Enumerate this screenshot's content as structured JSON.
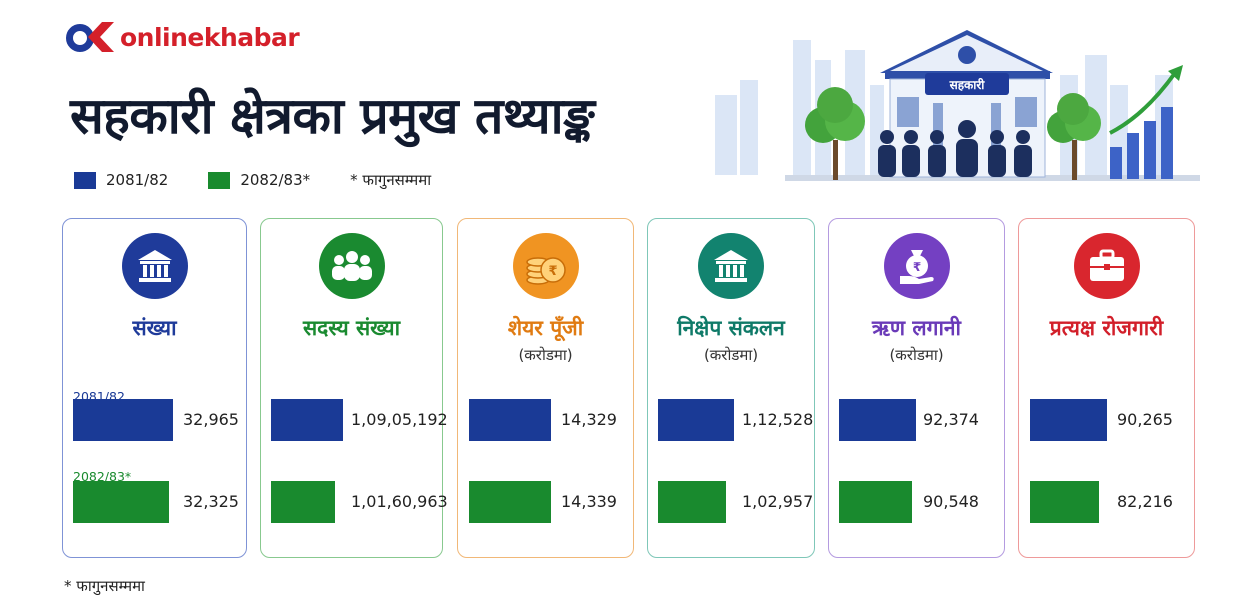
{
  "brand": {
    "name": "onlinekhabar"
  },
  "title": "सहकारी क्षेत्रका प्रमुख तथ्याङ्क",
  "legend": [
    {
      "label": "2081/82",
      "color": "#1a3a96"
    },
    {
      "label": "2082/83*",
      "color": "#198a2e"
    },
    {
      "label": "* फागुनसम्ममा",
      "color": ""
    }
  ],
  "hero": {
    "sign": "सहकारी"
  },
  "colors": {
    "y2081": "#1a3a96",
    "y2082": "#198a2e"
  },
  "chart_data": {
    "type": "bar",
    "series": [
      {
        "name": "2081/82",
        "values": [
          32965,
          10905192,
          14329,
          112528,
          92374,
          90265
        ]
      },
      {
        "name": "2082/83*",
        "values": [
          32325,
          10160963,
          14339,
          102957,
          90548,
          82216
        ]
      }
    ],
    "categories": [
      "संख्या",
      "सदस्य संख्या",
      "शेयर पूँजी",
      "निक्षेप संकलन",
      "ऋण लगानी",
      "प्रत्यक्ष रोजगारी"
    ]
  },
  "cards": [
    {
      "title": "संख्या",
      "subtitle": "",
      "icon": "bank-building-icon",
      "color": "#1f3b9a",
      "border": "#7f93d6",
      "iconbg": "#1f3b9a",
      "bar_labels": [
        "2081/82",
        "2082/83*"
      ],
      "values": [
        "32,965",
        "32,325"
      ]
    },
    {
      "title": "सदस्य संख्या",
      "subtitle": "",
      "icon": "people-group-icon",
      "color": "#1a8a30",
      "border": "#88c98f",
      "iconbg": "#1a8a30",
      "values": [
        "1,09,05,192",
        "1,01,60,963"
      ]
    },
    {
      "title": "शेयर पूँजी",
      "subtitle": "(करोडमा)",
      "icon": "coin-stack-icon",
      "color": "#e07b12",
      "border": "#f1b878",
      "iconbg": "#f09422",
      "values": [
        "14,329",
        "14,339"
      ]
    },
    {
      "title": "निक्षेप संकलन",
      "subtitle": "(करोडमा)",
      "icon": "bank-building-icon",
      "color": "#0f7a68",
      "border": "#7fc7b8",
      "iconbg": "#12836f",
      "values": [
        "1,12,528",
        "1,02,957"
      ]
    },
    {
      "title": "ऋण लगानी",
      "subtitle": "(करोडमा)",
      "icon": "money-bag-hand-icon",
      "color": "#6a3ab8",
      "border": "#b49be0",
      "iconbg": "#7440c2",
      "values": [
        "92,374",
        "90,548"
      ]
    },
    {
      "title": "प्रत्यक्ष रोजगारी",
      "subtitle": "",
      "icon": "briefcase-icon",
      "color": "#d21f2a",
      "border": "#ee9a9a",
      "iconbg": "#d9262e",
      "values": [
        "90,265",
        "82,216"
      ]
    }
  ],
  "footnote": "* फागुनसम्ममा"
}
